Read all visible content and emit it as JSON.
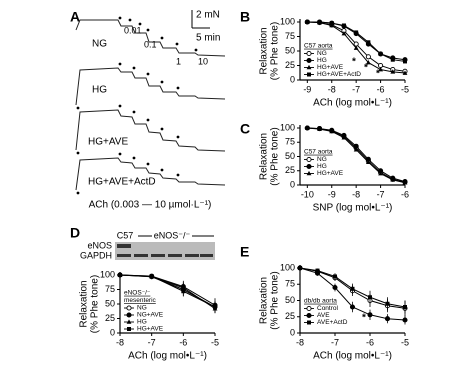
{
  "figure": {
    "panel_a": {
      "label": "A",
      "scale_force": "2 mN",
      "scale_time": "5 min",
      "conc_labels": [
        "0.01",
        "0.1",
        "1",
        "10"
      ],
      "traces": [
        "NG",
        "HG",
        "HG+AVE",
        "HG+AVE+ActD"
      ],
      "agonist": "ACh (0.003 — 10 µmol·L⁻¹)"
    },
    "panel_d": {
      "label": "D",
      "strain": "C57",
      "knockout": "eNOS⁻/⁻",
      "rows": [
        "eNOS",
        "GAPDH"
      ]
    }
  },
  "chart_data": [
    {
      "type": "line",
      "panel": "B",
      "xlabel": "ACh (log mol•L⁻¹)",
      "ylabel": [
        "Relaxation",
        "(% Phe tone)"
      ],
      "legend_title": [
        "C57 aorta"
      ],
      "x": [
        -9,
        -8.5,
        -8,
        -7.5,
        -7,
        -6.5,
        -6,
        -5.5,
        -5
      ],
      "xlim": [
        -9.3,
        -5
      ],
      "xticks": [
        -9,
        -8,
        -7,
        -6,
        -5
      ],
      "ylim": [
        0,
        100
      ],
      "yticks": [
        0,
        25,
        50,
        75,
        100
      ],
      "series": [
        {
          "name": "NG",
          "color": "#000000",
          "marker": "open-circle",
          "values": [
            100,
            99,
            95,
            85,
            62,
            40,
            25,
            18,
            15
          ]
        },
        {
          "name": "HG",
          "color": "#000000",
          "marker": "circle",
          "values": [
            100,
            100,
            98,
            93,
            80,
            62,
            45,
            38,
            35
          ]
        },
        {
          "name": "HG+AVE",
          "color": "#000000",
          "marker": "triangle",
          "values": [
            100,
            99,
            94,
            80,
            55,
            30,
            18,
            14,
            12
          ]
        },
        {
          "name": "HG+AVE+ActD",
          "color": "#000000",
          "marker": "square",
          "values": [
            100,
            100,
            98,
            94,
            82,
            65,
            45,
            35,
            32
          ]
        }
      ],
      "annotations": [
        "*",
        "*",
        "*"
      ]
    },
    {
      "type": "line",
      "panel": "C",
      "xlabel": "SNP (log mol•L⁻¹)",
      "ylabel": [
        "Relaxation",
        "(% Phe tone)"
      ],
      "legend_title": [
        "C57 aorta"
      ],
      "x": [
        -10,
        -9.5,
        -9,
        -8.5,
        -8,
        -7.5,
        -7,
        -6.5,
        -6
      ],
      "xlim": [
        -10.3,
        -6
      ],
      "xticks": [
        -10,
        -9,
        -8,
        -7,
        -6
      ],
      "ylim": [
        0,
        100
      ],
      "yticks": [
        0,
        25,
        50,
        75,
        100
      ],
      "series": [
        {
          "name": "NG",
          "color": "#000000",
          "marker": "open-circle",
          "values": [
            100,
            99,
            95,
            85,
            65,
            42,
            22,
            10,
            5
          ]
        },
        {
          "name": "HG",
          "color": "#000000",
          "marker": "circle",
          "values": [
            100,
            99,
            96,
            87,
            68,
            45,
            25,
            12,
            6
          ]
        },
        {
          "name": "HG+AVE",
          "color": "#000000",
          "marker": "triangle",
          "values": [
            100,
            98,
            94,
            83,
            62,
            40,
            20,
            9,
            4
          ]
        }
      ]
    },
    {
      "type": "line",
      "xlabel": "ACh (log mol•L⁻¹)",
      "ylabel": [
        "Relaxation",
        "(% Phe tone)"
      ],
      "legend_title": [
        "eNOS⁻/⁻",
        "mesenteric"
      ],
      "x": [
        -8,
        -7,
        -6,
        -5
      ],
      "xlim": [
        -8,
        -5
      ],
      "xticks": [
        -8,
        -7,
        -6,
        -5
      ],
      "ylim": [
        0,
        100
      ],
      "yticks": [
        0,
        25,
        50,
        75,
        100
      ],
      "series": [
        {
          "name": "NG",
          "color": "#000000",
          "marker": "open-circle",
          "values": [
            100,
            97,
            75,
            45
          ],
          "errors": [
            2,
            4,
            12,
            10
          ]
        },
        {
          "name": "NG+AVE",
          "color": "#000000",
          "marker": "circle",
          "values": [
            100,
            98,
            80,
            48
          ],
          "errors": [
            2,
            3,
            10,
            12
          ]
        },
        {
          "name": "HG",
          "color": "#000000",
          "marker": "triangle",
          "values": [
            100,
            97,
            78,
            42
          ],
          "errors": [
            2,
            4,
            9,
            8
          ]
        },
        {
          "name": "HG+AVE",
          "color": "#000000",
          "marker": "square",
          "values": [
            100,
            98,
            72,
            45
          ],
          "errors": [
            2,
            3,
            8,
            10
          ]
        }
      ]
    },
    {
      "type": "line",
      "panel": "E",
      "xlabel": "ACh (log mol•L⁻¹)",
      "ylabel": [
        "Relaxation",
        "(% Phe tone)"
      ],
      "legend_title": [
        "db/db aorta"
      ],
      "x": [
        -8,
        -7.5,
        -7,
        -6.5,
        -6,
        -5.5,
        -5
      ],
      "xlim": [
        -8,
        -5
      ],
      "xticks": [
        -8,
        -7,
        -6,
        -5
      ],
      "ylim": [
        0,
        100
      ],
      "yticks": [
        0,
        25,
        50,
        75,
        100
      ],
      "series": [
        {
          "name": "Control",
          "color": "#000000",
          "marker": "open-circle",
          "values": [
            100,
            95,
            85,
            65,
            50,
            42,
            38
          ],
          "errors": [
            2,
            3,
            5,
            8,
            10,
            10,
            12
          ]
        },
        {
          "name": "AVE",
          "color": "#000000",
          "marker": "circle",
          "values": [
            100,
            92,
            70,
            40,
            28,
            22,
            20
          ],
          "errors": [
            2,
            4,
            6,
            8,
            8,
            7,
            7
          ]
        },
        {
          "name": "AVE+ActD",
          "color": "#000000",
          "marker": "square",
          "values": [
            100,
            96,
            87,
            68,
            55,
            45,
            40
          ],
          "errors": [
            2,
            3,
            5,
            8,
            10,
            10,
            10
          ]
        }
      ],
      "annotations": [
        "*"
      ]
    }
  ]
}
